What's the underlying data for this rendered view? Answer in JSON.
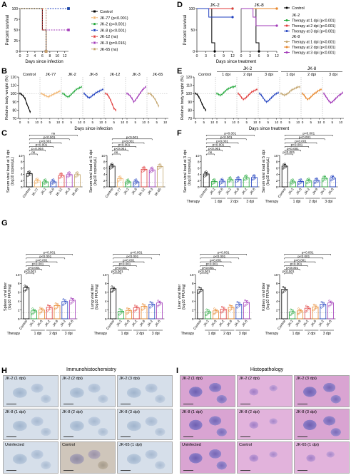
{
  "panel_letters": {
    "A": "A",
    "B": "B",
    "C": "C",
    "D": "D",
    "E": "E",
    "F": "F",
    "G": "G",
    "H": "H",
    "I": "I"
  },
  "colors": {
    "control": "#000000",
    "jk77": "#f2b26a",
    "jk2": "#22a83a",
    "jk8": "#1f3fbf",
    "jk12": "#e03a3a",
    "jk3": "#a23ab8",
    "jk65": "#c2a36a",
    "orange": "#e8862a",
    "gray": "#888888"
  },
  "panelA": {
    "ylabel": "Percent survival",
    "xlabel": "Days since infection",
    "yticks": [
      "0",
      "25",
      "50",
      "75",
      "100"
    ],
    "xticks": [
      "0",
      "2",
      "4",
      "6",
      "8",
      "10",
      "12"
    ],
    "legend": [
      {
        "label": "Control",
        "color": "#000000"
      },
      {
        "label": "JK-77 (p<0.001)",
        "color": "#f2b26a"
      },
      {
        "label": "JK-2 (p<0.001)",
        "color": "#22a83a"
      },
      {
        "label": "JK-8 (p<0.001)",
        "color": "#1f3fbf"
      },
      {
        "label": "JK-12 (ns)",
        "color": "#e03a3a"
      },
      {
        "label": "JK-3 (p=0.016)",
        "color": "#a23ab8"
      },
      {
        "label": "JK-65 (ns)",
        "color": "#c2a36a"
      }
    ]
  },
  "panelD": {
    "ylabel": "Percent survival",
    "xlabel": "Days since treatment",
    "titles": [
      "JK-2",
      "JK-8"
    ],
    "yticks": [
      "0",
      "50",
      "100"
    ],
    "xticks": [
      "0",
      "3",
      "6",
      "9",
      "12"
    ],
    "legend_control": "Control",
    "groups": [
      {
        "title": "JK-2",
        "items": [
          {
            "label": "Therapy at 1 dpi (p<0.001)",
            "color": "#22a83a"
          },
          {
            "label": "Therapy at 2 dpi (p<0.001)",
            "color": "#e03a3a"
          },
          {
            "label": "Therapy at 3 dpi (p<0.001)",
            "color": "#1f3fbf"
          }
        ]
      },
      {
        "title": "JK-8",
        "items": [
          {
            "label": "Therapy at 1 dpi (p<0.001)",
            "color": "#c2a36a"
          },
          {
            "label": "Therapy at 2 dpi (p<0.001)",
            "color": "#e8862a"
          },
          {
            "label": "Therapy at 3 dpi (p<0.001)",
            "color": "#a23ab8"
          }
        ]
      }
    ]
  },
  "panelB": {
    "ylabel": "Relative body weight (%)",
    "xlabel": "Days since infection",
    "yticks": [
      "70",
      "80",
      "90",
      "100",
      "110",
      "120"
    ],
    "groups": [
      "Control",
      "JK-77",
      "JK-2",
      "JK-8",
      "JK-12",
      "JK-3",
      "JK-65"
    ],
    "xticks": [
      "0",
      "5",
      "10",
      "0",
      "5",
      "10",
      "0",
      "5",
      "10",
      "0",
      "5",
      "10",
      "0",
      "5",
      "10",
      "0",
      "5",
      "10",
      "0",
      "5",
      "10"
    ]
  },
  "panelE": {
    "ylabel": "Relative body weight (%)",
    "xlabel": "Days since treatment",
    "yticks": [
      "70",
      "80",
      "90",
      "100",
      "110",
      "120"
    ],
    "top_groups": [
      "JK-2",
      "JK-8"
    ],
    "control": "Control",
    "subgroups": [
      "1 dpi",
      "2 dpi",
      "3 dpi",
      "1 dpi",
      "2 dpi",
      "3 dpi"
    ],
    "xticks": [
      "0",
      "5",
      "10",
      "0",
      "5",
      "10",
      "0",
      "5",
      "10",
      "0",
      "5",
      "10",
      "0",
      "5",
      "10",
      "0",
      "5",
      "10",
      "0",
      "5",
      "10"
    ]
  },
  "panelC": {
    "left_ylabel": "Serum viral load at 3 dpi",
    "right_ylabel": "Serum viral load at 5 dpi",
    "ylabel_units": "(log10 copies/μL)",
    "yticks": [
      "0",
      "2",
      "4",
      "6",
      "8",
      "10"
    ],
    "cats": [
      "Control",
      "JK-77",
      "JK-2",
      "JK-8",
      "JK-12",
      "JK-3",
      "JK-65"
    ],
    "left_sig": [
      "ns",
      "p=0.004",
      "p<0.001",
      "p<0.001",
      "p<0.001",
      "ns"
    ],
    "right_sig": [
      "ns",
      "p<0.001",
      "p<0.001",
      "p<0.001",
      "p<0.001"
    ]
  },
  "panelF": {
    "left_ylabel": "Serum viral load at 3 dpi",
    "right_ylabel": "Serum viral load at 5 dpi",
    "ylabel_units": "(log10 copies/μL)",
    "yticks": [
      "0",
      "2",
      "4",
      "6",
      "8",
      "10"
    ],
    "cats": [
      "Control",
      "JK-2",
      "JK-8",
      "JK-2",
      "JK-8",
      "JK-2",
      "JK-8"
    ],
    "therapy": "Therapy",
    "dpis": [
      "1 dpi",
      "2 dpi",
      "3 dpi"
    ],
    "left_sig": [
      "ns",
      "p<0.001",
      "p<0.001",
      "p<0.001",
      "p<0.001",
      "p<0.001"
    ],
    "right_sig": [
      "p<0.001",
      "p<0.001",
      "p<0.001",
      "p<0.001",
      "p<0.001",
      "p<0.001"
    ]
  },
  "panelG": {
    "ylabels": [
      "Spleen viral titer",
      "Lung viral titer",
      "Liver viral titer",
      "Kidney viral titer"
    ],
    "ylabel_units": "(log10 FFU/mg)",
    "yticks": [
      "0",
      "2",
      "4",
      "6",
      "8",
      "10"
    ],
    "cats": [
      "Control",
      "JK-2",
      "JK-8",
      "JK-2",
      "JK-8",
      "JK-2",
      "JK-8"
    ],
    "therapy": "Therapy",
    "dpis": [
      "1 dpi",
      "2 dpi",
      "3 dpi"
    ],
    "sig": [
      "p<0.001",
      "p<0.001",
      "p<0.001",
      "p<0.001",
      "p<0.001",
      "p<0.001"
    ]
  },
  "chart_data": [
    {
      "type": "line",
      "panel": "A",
      "title": "",
      "xlabel": "Days since infection",
      "ylabel": "Percent survival",
      "xlim": [
        0,
        13
      ],
      "ylim": [
        0,
        100
      ],
      "series": [
        {
          "name": "Control",
          "x": [
            0,
            5,
            6,
            7
          ],
          "values": [
            100,
            100,
            50,
            0
          ]
        },
        {
          "name": "JK-77 (p<0.001)",
          "x": [
            0,
            13
          ],
          "values": [
            100,
            100
          ]
        },
        {
          "name": "JK-2 (p<0.001)",
          "x": [
            0,
            13
          ],
          "values": [
            100,
            100
          ]
        },
        {
          "name": "JK-8 (p<0.001)",
          "x": [
            0,
            13
          ],
          "values": [
            100,
            100
          ]
        },
        {
          "name": "JK-12 (ns)",
          "x": [
            0,
            5,
            6,
            7
          ],
          "values": [
            100,
            100,
            50,
            0
          ]
        },
        {
          "name": "JK-3 (p=0.016)",
          "x": [
            0,
            6,
            7,
            13
          ],
          "values": [
            100,
            100,
            50,
            50
          ]
        },
        {
          "name": "JK-65 (ns)",
          "x": [
            0,
            6,
            7
          ],
          "values": [
            100,
            100,
            0
          ]
        }
      ]
    },
    {
      "type": "line",
      "panel": "D-JK-2",
      "title": "JK-2",
      "xlabel": "Days since treatment",
      "ylabel": "Percent survival",
      "xlim": [
        0,
        12
      ],
      "ylim": [
        0,
        100
      ],
      "series": [
        {
          "name": "Control",
          "x": [
            0,
            4,
            5,
            6
          ],
          "values": [
            100,
            100,
            20,
            0
          ]
        },
        {
          "name": "Therapy at 1 dpi (p<0.001)",
          "x": [
            0,
            12
          ],
          "values": [
            100,
            100
          ]
        },
        {
          "name": "Therapy at 2 dpi (p<0.001)",
          "x": [
            0,
            12
          ],
          "values": [
            100,
            100
          ]
        },
        {
          "name": "Therapy at 3 dpi (p<0.001)",
          "x": [
            0,
            4,
            12
          ],
          "values": [
            100,
            80,
            80
          ]
        }
      ]
    },
    {
      "type": "line",
      "panel": "D-JK-8",
      "title": "JK-8",
      "xlabel": "Days since treatment",
      "ylabel": "Percent survival",
      "xlim": [
        0,
        12
      ],
      "ylim": [
        0,
        100
      ],
      "series": [
        {
          "name": "Control",
          "x": [
            0,
            4,
            5,
            6
          ],
          "values": [
            100,
            100,
            20,
            0
          ]
        },
        {
          "name": "Therapy at 1 dpi (p<0.001)",
          "x": [
            0,
            12
          ],
          "values": [
            100,
            100
          ]
        },
        {
          "name": "Therapy at 2 dpi (p<0.001)",
          "x": [
            0,
            12
          ],
          "values": [
            100,
            100
          ]
        },
        {
          "name": "Therapy at 3 dpi (p<0.001)",
          "x": [
            0,
            4,
            5,
            12
          ],
          "values": [
            100,
            80,
            60,
            60
          ]
        }
      ]
    },
    {
      "type": "bar",
      "panel": "C-left",
      "ylabel": "Serum viral load at 3 dpi",
      "categories": [
        "Control",
        "JK-77",
        "JK-2",
        "JK-8",
        "JK-12",
        "JK-3",
        "JK-65"
      ],
      "values": [
        4.2,
        1.9,
        1.6,
        1.6,
        3.6,
        3.9,
        3.9
      ],
      "ylim": [
        0,
        10
      ]
    },
    {
      "type": "bar",
      "panel": "C-right",
      "ylabel": "Serum viral load at 5 dpi",
      "categories": [
        "Control",
        "JK-77",
        "JK-2",
        "JK-8",
        "JK-12",
        "JK-3",
        "JK-65"
      ],
      "values": [
        6.6,
        2.6,
        1.6,
        1.6,
        5.6,
        5.4,
        6.5
      ],
      "ylim": [
        0,
        10
      ]
    },
    {
      "type": "bar",
      "panel": "F-left",
      "ylabel": "Serum viral load at 3 dpi",
      "categories": [
        "Control",
        "JK-2",
        "JK-8",
        "JK-2",
        "JK-8",
        "JK-2",
        "JK-8"
      ],
      "values": [
        4.1,
        1.7,
        1.8,
        2.3,
        2.4,
        2.9,
        3.0
      ],
      "ylim": [
        0,
        10
      ]
    },
    {
      "type": "bar",
      "panel": "F-right",
      "ylabel": "Serum viral load at 5 dpi",
      "categories": [
        "Control",
        "JK-2",
        "JK-8",
        "JK-2",
        "JK-8",
        "JK-2",
        "JK-8"
      ],
      "values": [
        6.6,
        1.6,
        1.7,
        1.9,
        2.0,
        2.7,
        2.8
      ],
      "ylim": [
        0,
        10
      ]
    },
    {
      "type": "bar",
      "panel": "G-spleen",
      "ylabel": "Spleen viral titer",
      "categories": [
        "Control",
        "JK-2",
        "JK-8",
        "JK-2",
        "JK-8",
        "JK-2",
        "JK-8"
      ],
      "values": [
        7.0,
        1.8,
        2.0,
        2.6,
        3.0,
        3.9,
        4.2
      ],
      "ylim": [
        0,
        10
      ]
    },
    {
      "type": "bar",
      "panel": "G-lung",
      "ylabel": "Lung viral titer",
      "categories": [
        "Control",
        "JK-2",
        "JK-8",
        "JK-2",
        "JK-8",
        "JK-2",
        "JK-8"
      ],
      "values": [
        6.8,
        1.7,
        1.9,
        2.5,
        2.8,
        3.3,
        3.6
      ],
      "ylim": [
        0,
        10
      ]
    },
    {
      "type": "bar",
      "panel": "G-liver",
      "ylabel": "Liver viral titer",
      "categories": [
        "Control",
        "JK-2",
        "JK-8",
        "JK-2",
        "JK-8",
        "JK-2",
        "JK-8"
      ],
      "values": [
        6.6,
        1.6,
        1.8,
        2.2,
        2.6,
        3.3,
        3.7
      ],
      "ylim": [
        0,
        10
      ]
    },
    {
      "type": "bar",
      "panel": "G-kidney",
      "ylabel": "Kidney viral titer",
      "categories": [
        "Control",
        "JK-2",
        "JK-8",
        "JK-2",
        "JK-8",
        "JK-2",
        "JK-8"
      ],
      "values": [
        6.7,
        1.6,
        1.8,
        2.4,
        2.7,
        3.3,
        3.6
      ],
      "ylim": [
        0,
        10
      ]
    }
  ],
  "panelH": {
    "title": "Immunohistochemistry",
    "tiles": [
      "JK-2 (1 dpi)",
      "JK-2 (2 dpi)",
      "JK-2 (3 dpi)",
      "JK-8 (1 dpi)",
      "JK-8 (2 dpi)",
      "JK-8 (3 dpi)",
      "Uninfected",
      "Control",
      "JK-65 (1 dpi)"
    ]
  },
  "panelI": {
    "title": "Histopathology",
    "tiles": [
      "JK-2 (1 dpi)",
      "JK-2 (2 dpi)",
      "JK-2 (3 dpi)",
      "JK-8 (1 dpi)",
      "JK-8 (2 dpi)",
      "JK-8 (3 dpi)",
      "Uninfected",
      "Control",
      "JK-65 (1 dpi)"
    ]
  }
}
